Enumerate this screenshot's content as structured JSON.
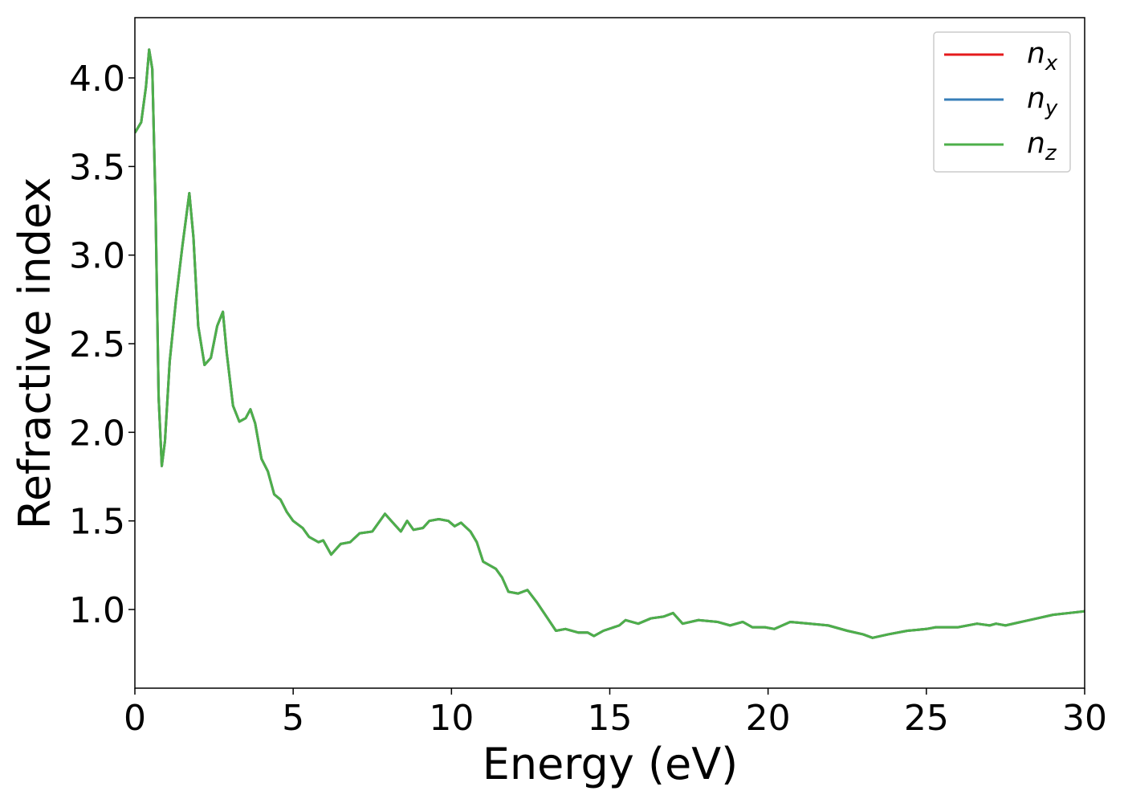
{
  "chart_data": {
    "type": "line",
    "xlabel": "Energy (eV)",
    "ylabel": "Refractive index",
    "x": [
      0,
      0.2,
      0.35,
      0.45,
      0.55,
      0.65,
      0.75,
      0.85,
      0.95,
      1.1,
      1.3,
      1.5,
      1.72,
      1.85,
      2.0,
      2.2,
      2.4,
      2.6,
      2.78,
      2.9,
      3.1,
      3.3,
      3.5,
      3.65,
      3.8,
      4.0,
      4.2,
      4.4,
      4.6,
      4.8,
      5.0,
      5.3,
      5.5,
      5.8,
      5.95,
      6.2,
      6.5,
      6.8,
      7.1,
      7.5,
      7.9,
      8.1,
      8.4,
      8.6,
      8.8,
      9.1,
      9.3,
      9.6,
      9.9,
      10.1,
      10.3,
      10.6,
      10.8,
      11.0,
      11.4,
      11.6,
      11.8,
      12.1,
      12.4,
      12.7,
      13.0,
      13.3,
      13.6,
      14.0,
      14.3,
      14.5,
      14.8,
      15.3,
      15.5,
      15.9,
      16.3,
      16.7,
      17.0,
      17.3,
      17.8,
      18.4,
      18.8,
      19.2,
      19.5,
      19.9,
      20.2,
      20.7,
      21.3,
      21.9,
      22.5,
      23.0,
      23.3,
      23.8,
      24.4,
      25.0,
      25.3,
      26.0,
      26.6,
      27.0,
      27.2,
      27.5,
      28.0,
      28.5,
      29.0,
      29.5,
      30.0
    ],
    "series": [
      {
        "name": "nx",
        "color": "#e41a1c",
        "values": [
          3.69,
          3.75,
          3.95,
          4.16,
          4.05,
          3.3,
          2.2,
          1.81,
          1.95,
          2.4,
          2.75,
          3.05,
          3.35,
          3.1,
          2.6,
          2.38,
          2.42,
          2.6,
          2.68,
          2.45,
          2.15,
          2.06,
          2.08,
          2.13,
          2.05,
          1.85,
          1.78,
          1.65,
          1.62,
          1.55,
          1.5,
          1.46,
          1.41,
          1.38,
          1.39,
          1.31,
          1.37,
          1.38,
          1.43,
          1.44,
          1.54,
          1.5,
          1.44,
          1.5,
          1.45,
          1.46,
          1.5,
          1.51,
          1.5,
          1.47,
          1.49,
          1.44,
          1.38,
          1.27,
          1.23,
          1.18,
          1.1,
          1.09,
          1.11,
          1.04,
          0.96,
          0.88,
          0.89,
          0.87,
          0.87,
          0.85,
          0.88,
          0.91,
          0.94,
          0.92,
          0.95,
          0.96,
          0.98,
          0.92,
          0.94,
          0.93,
          0.91,
          0.93,
          0.9,
          0.9,
          0.89,
          0.93,
          0.92,
          0.91,
          0.88,
          0.86,
          0.84,
          0.86,
          0.88,
          0.89,
          0.9,
          0.9,
          0.92,
          0.91,
          0.92,
          0.91,
          0.93,
          0.95,
          0.97,
          0.98,
          0.99
        ]
      },
      {
        "name": "ny",
        "color": "#377eb8",
        "values": [
          3.69,
          3.75,
          3.95,
          4.16,
          4.05,
          3.3,
          2.2,
          1.81,
          1.95,
          2.4,
          2.75,
          3.05,
          3.35,
          3.1,
          2.6,
          2.38,
          2.42,
          2.6,
          2.68,
          2.45,
          2.15,
          2.06,
          2.08,
          2.13,
          2.05,
          1.85,
          1.78,
          1.65,
          1.62,
          1.55,
          1.5,
          1.46,
          1.41,
          1.38,
          1.39,
          1.31,
          1.37,
          1.38,
          1.43,
          1.44,
          1.54,
          1.5,
          1.44,
          1.5,
          1.45,
          1.46,
          1.5,
          1.51,
          1.5,
          1.47,
          1.49,
          1.44,
          1.38,
          1.27,
          1.23,
          1.18,
          1.1,
          1.09,
          1.11,
          1.04,
          0.96,
          0.88,
          0.89,
          0.87,
          0.87,
          0.85,
          0.88,
          0.91,
          0.94,
          0.92,
          0.95,
          0.96,
          0.98,
          0.92,
          0.94,
          0.93,
          0.91,
          0.93,
          0.9,
          0.9,
          0.89,
          0.93,
          0.92,
          0.91,
          0.88,
          0.86,
          0.84,
          0.86,
          0.88,
          0.89,
          0.9,
          0.9,
          0.92,
          0.91,
          0.92,
          0.91,
          0.93,
          0.95,
          0.97,
          0.98,
          0.99
        ]
      },
      {
        "name": "nz",
        "color": "#4daf4a",
        "values": [
          3.69,
          3.75,
          3.95,
          4.16,
          4.05,
          3.3,
          2.2,
          1.81,
          1.95,
          2.4,
          2.75,
          3.05,
          3.35,
          3.1,
          2.6,
          2.38,
          2.42,
          2.6,
          2.68,
          2.45,
          2.15,
          2.06,
          2.08,
          2.13,
          2.05,
          1.85,
          1.78,
          1.65,
          1.62,
          1.55,
          1.5,
          1.46,
          1.41,
          1.38,
          1.39,
          1.31,
          1.37,
          1.38,
          1.43,
          1.44,
          1.54,
          1.5,
          1.44,
          1.5,
          1.45,
          1.46,
          1.5,
          1.51,
          1.5,
          1.47,
          1.49,
          1.44,
          1.38,
          1.27,
          1.23,
          1.18,
          1.1,
          1.09,
          1.11,
          1.04,
          0.96,
          0.88,
          0.89,
          0.87,
          0.87,
          0.85,
          0.88,
          0.91,
          0.94,
          0.92,
          0.95,
          0.96,
          0.98,
          0.92,
          0.94,
          0.93,
          0.91,
          0.93,
          0.9,
          0.9,
          0.89,
          0.93,
          0.92,
          0.91,
          0.88,
          0.86,
          0.84,
          0.86,
          0.88,
          0.89,
          0.9,
          0.9,
          0.92,
          0.91,
          0.92,
          0.91,
          0.93,
          0.95,
          0.97,
          0.98,
          0.99
        ]
      }
    ],
    "xlim": [
      0,
      30
    ],
    "xticks": [
      0,
      5,
      10,
      15,
      20,
      25,
      30
    ],
    "ylim": [
      0.556,
      4.34
    ],
    "yticks": [
      {
        "value": 1,
        "label": "1.0"
      },
      1.5,
      {
        "value": 2,
        "label": "2.0"
      },
      2.5,
      {
        "value": 3,
        "label": "3.0"
      },
      3.5,
      {
        "value": 4,
        "label": "4.0"
      }
    ],
    "legend": "upper right",
    "grid": false
  }
}
